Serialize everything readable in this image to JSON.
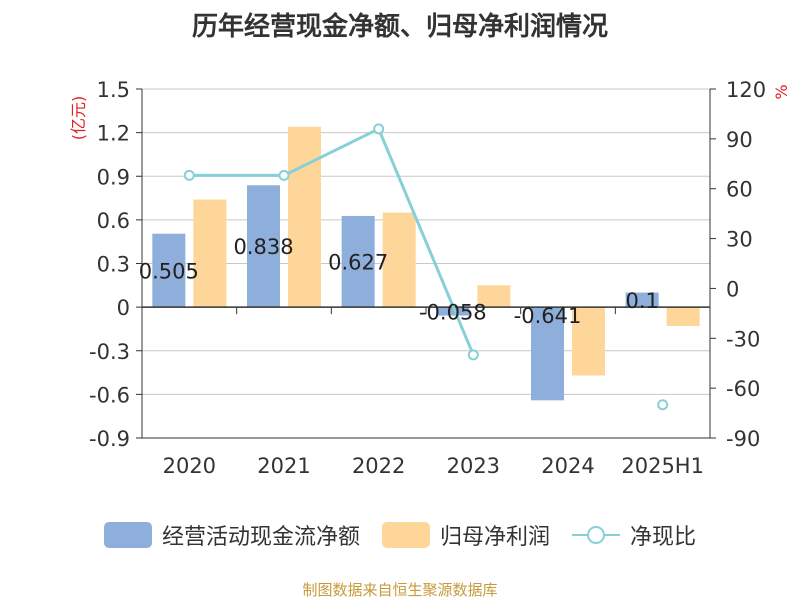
{
  "title": "历年经营现金净额、归母净利润情况",
  "source": "制图数据来自恒生聚源数据库",
  "colors": {
    "cashflow": "#8eaedb",
    "profit": "#ffd699",
    "ratio": "#86d0d8",
    "axis_label": "#e02020",
    "grid": "#c8c8c8",
    "text": "#333333",
    "source": "#c89a3a"
  },
  "chart_data": {
    "type": "bar",
    "categories": [
      "2020",
      "2021",
      "2022",
      "2023",
      "2024",
      "2025H1"
    ],
    "series": [
      {
        "name": "经营活动现金流净额",
        "type": "bar",
        "axis": "left",
        "values": [
          0.505,
          0.838,
          0.627,
          -0.058,
          -0.641,
          0.1
        ],
        "labels": [
          "0.505",
          "0.838",
          "0.627",
          "-0.058",
          "-0.641",
          "0.1"
        ]
      },
      {
        "name": "归母净利润",
        "type": "bar",
        "axis": "left",
        "values": [
          0.74,
          1.24,
          0.65,
          0.15,
          -0.47,
          -0.13
        ]
      },
      {
        "name": "净现比",
        "type": "line",
        "axis": "right",
        "values": [
          68,
          68,
          96,
          -40,
          null,
          -70
        ]
      }
    ],
    "y_left": {
      "label": "(亿元)",
      "min": -0.9,
      "max": 1.5,
      "ticks": [
        1.5,
        1.2,
        0.9,
        0.6,
        0.3,
        0,
        -0.3,
        -0.6,
        -0.9
      ]
    },
    "y_right": {
      "label": "%",
      "min": -90,
      "max": 120,
      "ticks": [
        120,
        90,
        60,
        30,
        0,
        -30,
        -60,
        -90
      ]
    },
    "grid": true,
    "legend": "bottom"
  }
}
